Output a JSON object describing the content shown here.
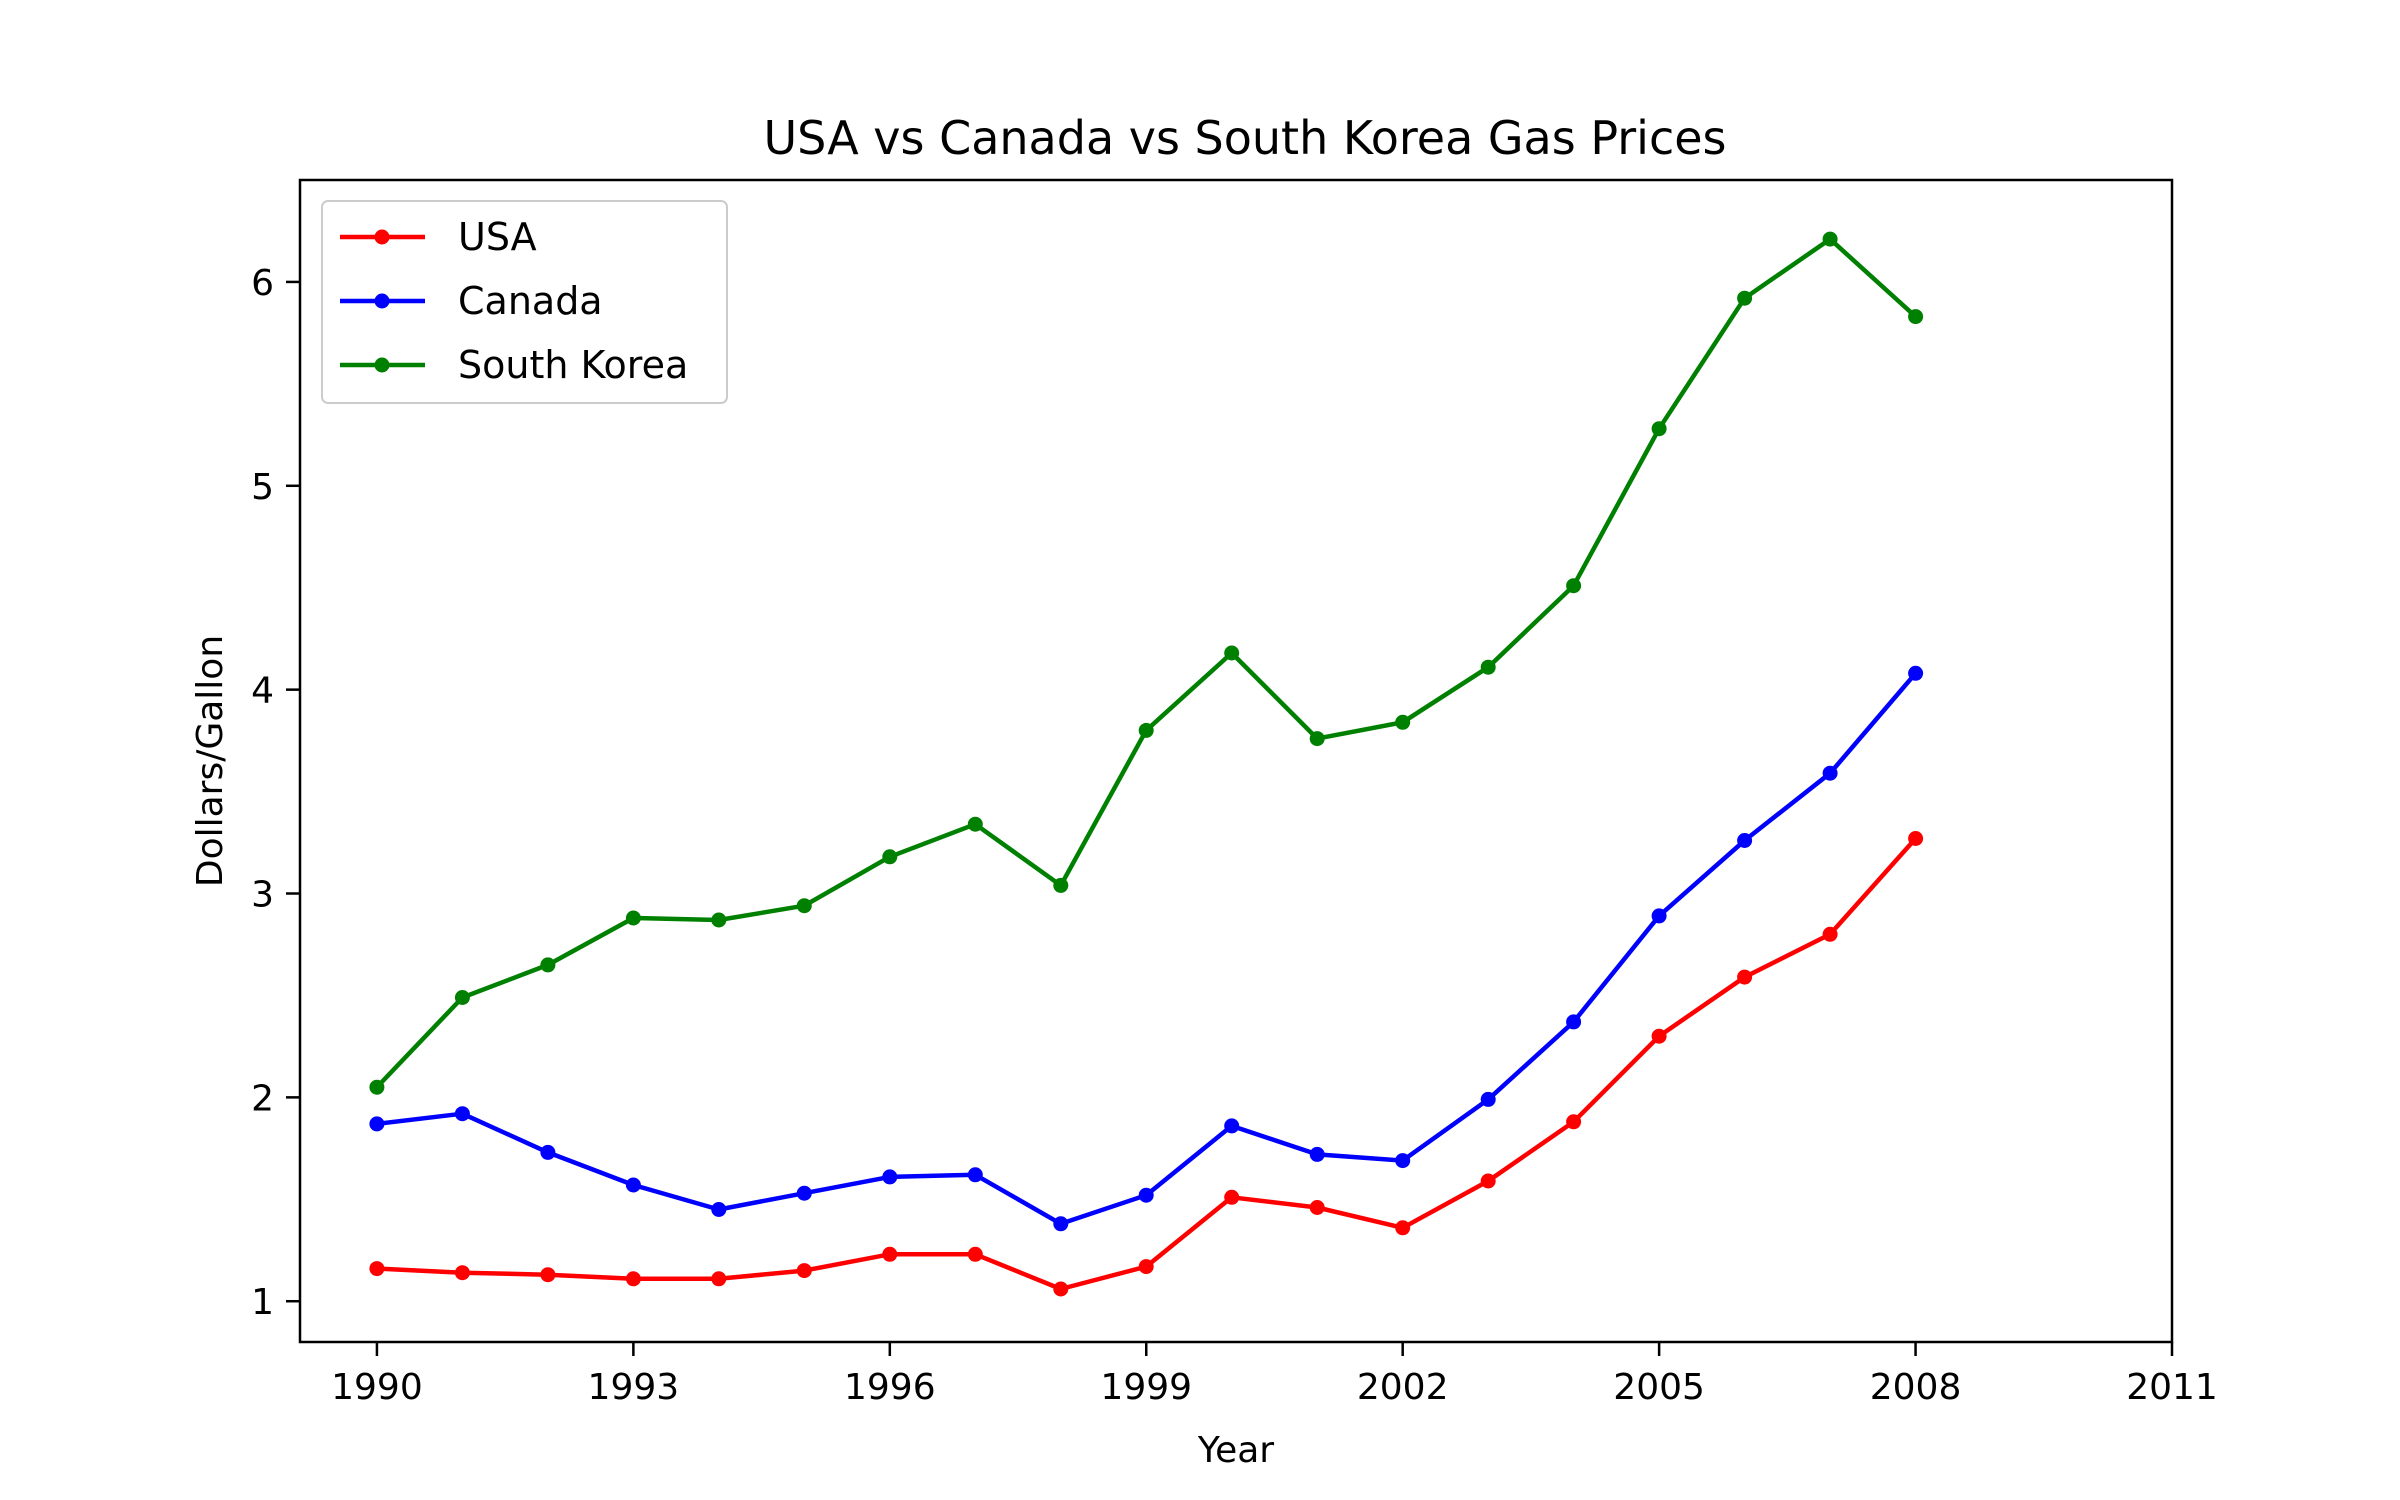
{
  "chart_data": {
    "type": "line",
    "title": "USA vs Canada vs South Korea Gas Prices",
    "xlabel": "Year",
    "ylabel": "Dollars/Gallon",
    "x": [
      1990,
      1991,
      1992,
      1993,
      1994,
      1995,
      1996,
      1997,
      1998,
      1999,
      2000,
      2001,
      2002,
      2003,
      2004,
      2005,
      2006,
      2007,
      2008
    ],
    "xticks": [
      1990,
      1993,
      1996,
      1999,
      2002,
      2005,
      2008,
      2011
    ],
    "yticks": [
      1,
      2,
      3,
      4,
      5,
      6
    ],
    "xlim": [
      1989.1,
      2011
    ],
    "ylim": [
      0.8,
      6.5
    ],
    "grid": false,
    "legend_position": "top-left",
    "series": [
      {
        "name": "USA",
        "color": "#ff0000",
        "values": [
          1.16,
          1.14,
          1.13,
          1.11,
          1.11,
          1.15,
          1.23,
          1.23,
          1.06,
          1.17,
          1.51,
          1.46,
          1.36,
          1.59,
          1.88,
          2.3,
          2.59,
          2.8,
          3.27
        ]
      },
      {
        "name": "Canada",
        "color": "#0000ff",
        "values": [
          1.87,
          1.92,
          1.73,
          1.57,
          1.45,
          1.53,
          1.61,
          1.62,
          1.38,
          1.52,
          1.86,
          1.72,
          1.69,
          1.99,
          2.37,
          2.89,
          3.26,
          3.59,
          4.08
        ]
      },
      {
        "name": "South Korea",
        "color": "#008000",
        "values": [
          2.05,
          2.49,
          2.65,
          2.88,
          2.87,
          2.94,
          3.18,
          3.34,
          3.04,
          3.8,
          4.18,
          3.76,
          3.84,
          4.11,
          4.51,
          5.28,
          5.92,
          6.21,
          5.83
        ]
      }
    ]
  }
}
